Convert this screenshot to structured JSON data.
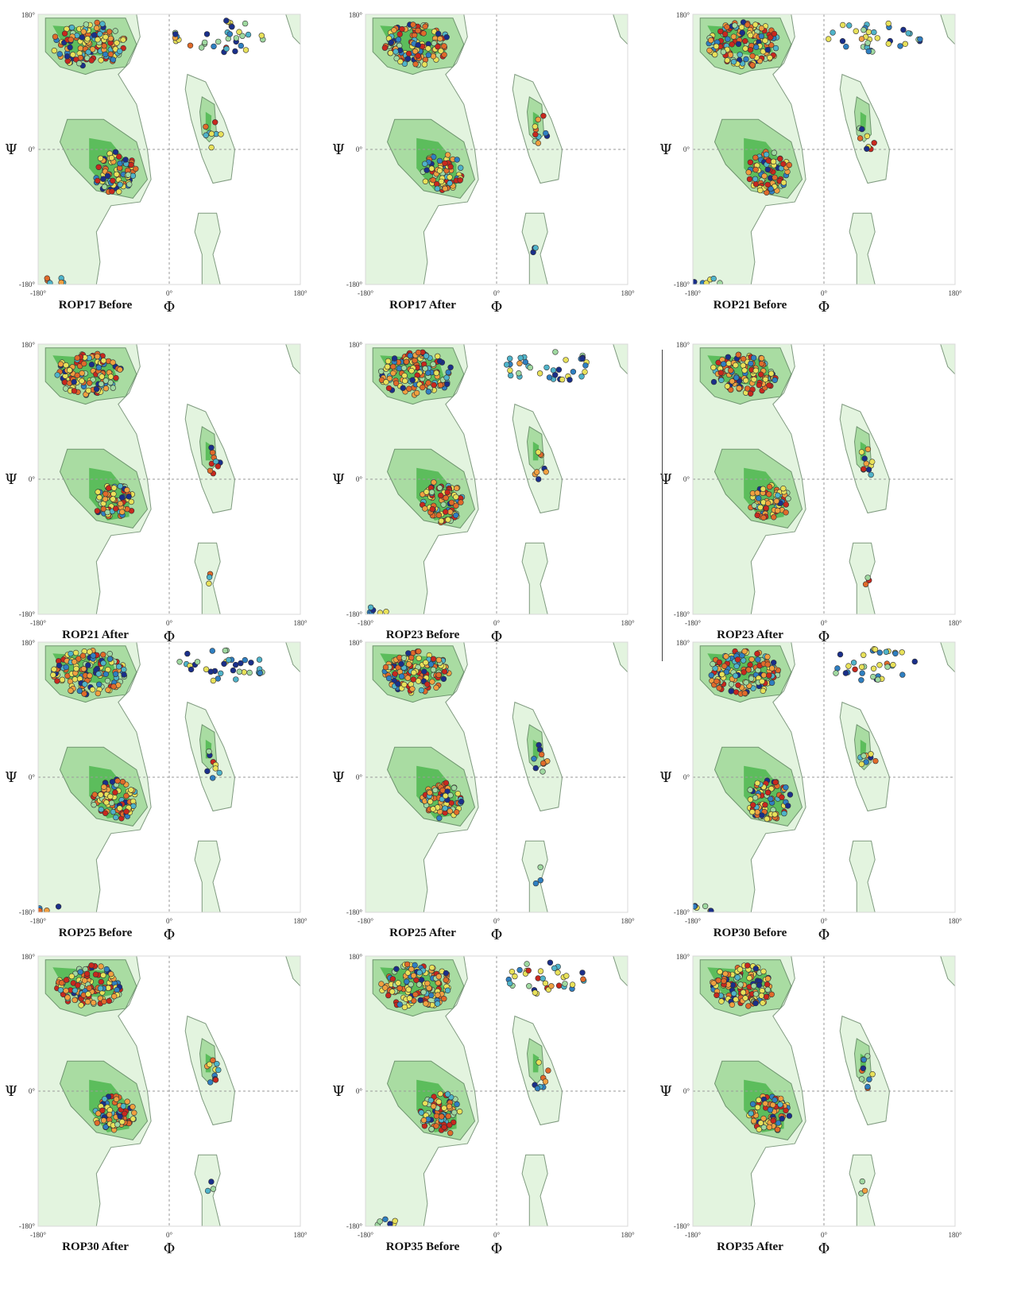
{
  "figure": {
    "tick_labels": {
      "x_min": "-180°",
      "x_mid": "0°",
      "x_max": "180°",
      "y_max": "180°",
      "y_mid": "0°",
      "y_min": "-180°"
    },
    "x_axis_symbol": "Φ",
    "y_axis_symbol": "Ψ"
  },
  "colors": {
    "allowed_region": "#e3f4df",
    "favored_region": "#a9dca2",
    "core_region": "#5cbd5c",
    "point_scale": [
      "#1a2f8a",
      "#2f7fc1",
      "#4fb3c9",
      "#9fd8a0",
      "#e8e15a",
      "#f0a040",
      "#e06a2a",
      "#c8281e"
    ],
    "outlier_highlight": "#ff2a1a"
  },
  "chart_data": [
    {
      "type": "scatter",
      "title": "ROP17 Before",
      "xlabel": "Φ",
      "ylabel": "Ψ",
      "xlim": [
        -180,
        180
      ],
      "ylim": [
        -180,
        180
      ],
      "grid": true,
      "cluster_pattern": "before",
      "seed": 17
    },
    {
      "type": "scatter",
      "title": "ROP17 After",
      "xlabel": "Φ",
      "ylabel": "Ψ",
      "xlim": [
        -180,
        180
      ],
      "ylim": [
        -180,
        180
      ],
      "grid": true,
      "cluster_pattern": "after",
      "seed": 18
    },
    {
      "type": "scatter",
      "title": "ROP21 Before",
      "xlabel": "Φ",
      "ylabel": "Ψ",
      "xlim": [
        -180,
        180
      ],
      "ylim": [
        -180,
        180
      ],
      "grid": true,
      "cluster_pattern": "before",
      "seed": 21
    },
    {
      "type": "scatter",
      "title": "ROP21 After",
      "xlabel": "Φ",
      "ylabel": "Ψ",
      "xlim": [
        -180,
        180
      ],
      "ylim": [
        -180,
        180
      ],
      "grid": true,
      "cluster_pattern": "after",
      "seed": 22
    },
    {
      "type": "scatter",
      "title": "ROP23 Before",
      "xlabel": "Φ",
      "ylabel": "Ψ",
      "xlim": [
        -180,
        180
      ],
      "ylim": [
        -180,
        180
      ],
      "grid": true,
      "cluster_pattern": "before",
      "seed": 23
    },
    {
      "type": "scatter",
      "title": "ROP23 After",
      "xlabel": "Φ",
      "ylabel": "Ψ",
      "xlim": [
        -180,
        180
      ],
      "ylim": [
        -180,
        180
      ],
      "grid": true,
      "cluster_pattern": "after",
      "seed": 24
    },
    {
      "type": "scatter",
      "title": "ROP25 Before",
      "xlabel": "Φ",
      "ylabel": "Ψ",
      "xlim": [
        -180,
        180
      ],
      "ylim": [
        -180,
        180
      ],
      "grid": true,
      "cluster_pattern": "before",
      "seed": 25
    },
    {
      "type": "scatter",
      "title": "ROP25 After",
      "xlabel": "Φ",
      "ylabel": "Ψ",
      "xlim": [
        -180,
        180
      ],
      "ylim": [
        -180,
        180
      ],
      "grid": true,
      "cluster_pattern": "after",
      "seed": 26
    },
    {
      "type": "scatter",
      "title": "ROP30 Before",
      "xlabel": "Φ",
      "ylabel": "Ψ",
      "xlim": [
        -180,
        180
      ],
      "ylim": [
        -180,
        180
      ],
      "grid": true,
      "cluster_pattern": "before",
      "seed": 30
    },
    {
      "type": "scatter",
      "title": "ROP30 After",
      "xlabel": "Φ",
      "ylabel": "Ψ",
      "xlim": [
        -180,
        180
      ],
      "ylim": [
        -180,
        180
      ],
      "grid": true,
      "cluster_pattern": "after",
      "seed": 31
    },
    {
      "type": "scatter",
      "title": "ROP35 Before",
      "xlabel": "Φ",
      "ylabel": "Ψ",
      "xlim": [
        -180,
        180
      ],
      "ylim": [
        -180,
        180
      ],
      "grid": true,
      "cluster_pattern": "before",
      "seed": 35
    },
    {
      "type": "scatter",
      "title": "ROP35 After",
      "xlabel": "Φ",
      "ylabel": "Ψ",
      "xlim": [
        -180,
        180
      ],
      "ylim": [
        -180,
        180
      ],
      "grid": true,
      "cluster_pattern": "after",
      "seed": 36
    }
  ]
}
